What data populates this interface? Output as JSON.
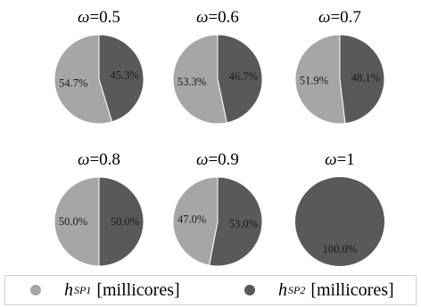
{
  "chart_data": [
    {
      "type": "pie",
      "title_symbol": "ω",
      "title_value": "=0.5",
      "categories": [
        "SP1",
        "SP2"
      ],
      "values": [
        54.7,
        45.3
      ],
      "labels": [
        "54.7%",
        "45.3%"
      ]
    },
    {
      "type": "pie",
      "title_symbol": "ω",
      "title_value": "=0.6",
      "categories": [
        "SP1",
        "SP2"
      ],
      "values": [
        53.3,
        46.7
      ],
      "labels": [
        "53.3%",
        "46.7%"
      ]
    },
    {
      "type": "pie",
      "title_symbol": "ω",
      "title_value": "=0.7",
      "categories": [
        "SP1",
        "SP2"
      ],
      "values": [
        51.9,
        48.1
      ],
      "labels": [
        "51.9%",
        "48.1%"
      ]
    },
    {
      "type": "pie",
      "title_symbol": "ω",
      "title_value": "=0.8",
      "categories": [
        "SP1",
        "SP2"
      ],
      "values": [
        50.0,
        50.0
      ],
      "labels": [
        "50.0%",
        "50.0%"
      ]
    },
    {
      "type": "pie",
      "title_symbol": "ω",
      "title_value": "=0.9",
      "categories": [
        "SP1",
        "SP2"
      ],
      "values": [
        47.0,
        53.0
      ],
      "labels": [
        "47.0%",
        "53.0%"
      ]
    },
    {
      "type": "pie",
      "title_symbol": "ω",
      "title_value": "=1",
      "categories": [
        "SP1",
        "SP2"
      ],
      "values": [
        0.0,
        100.0
      ],
      "labels": [
        "",
        "100.0%"
      ]
    }
  ],
  "legend": {
    "items": [
      {
        "name": "h",
        "sup": "SP1",
        "unit": "[millicores]",
        "color": "#a6a6a6"
      },
      {
        "name": "h",
        "sup": "SP2",
        "unit": "[millicores]",
        "color": "#595959"
      }
    ]
  },
  "colors": {
    "sp1": "#a6a6a6",
    "sp2": "#595959"
  }
}
